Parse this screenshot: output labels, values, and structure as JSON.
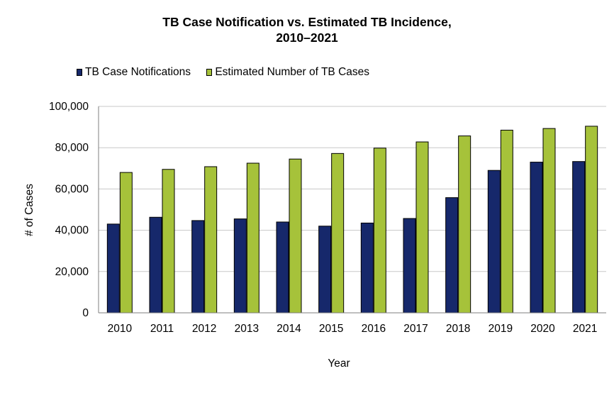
{
  "chart_data": {
    "type": "bar",
    "title": [
      "TB Case Notification vs. Estimated TB Incidence,",
      "2010–2021"
    ],
    "xlabel": "Year",
    "ylabel": "# of Cases",
    "categories": [
      "2010",
      "2011",
      "2012",
      "2013",
      "2014",
      "2015",
      "2016",
      "2017",
      "2018",
      "2019",
      "2020",
      "2021"
    ],
    "ylim": [
      0,
      100000
    ],
    "yticks": [
      "0",
      "20,000",
      "40,000",
      "60,000",
      "80,000",
      "100,000"
    ],
    "grid": true,
    "legend_position": "top",
    "series": [
      {
        "name": "TB Case Notifications",
        "color": "#16286b",
        "values": [
          43000,
          46300,
          44700,
          45500,
          44000,
          42000,
          43500,
          45700,
          55800,
          69000,
          73000,
          73300
        ]
      },
      {
        "name": "Estimated Number of TB Cases",
        "color": "#a6c23a",
        "values": [
          68000,
          69500,
          70800,
          72500,
          74500,
          77200,
          79800,
          82800,
          85700,
          88500,
          89300,
          90400
        ]
      }
    ]
  }
}
